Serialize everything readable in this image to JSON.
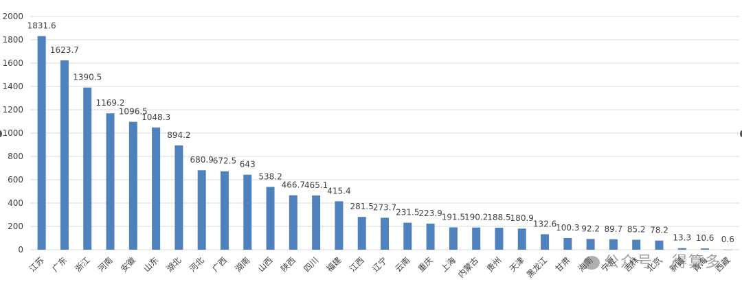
{
  "chart_data": {
    "type": "bar",
    "title": "",
    "xlabel": "",
    "ylabel": "",
    "ylim": [
      0,
      2000
    ],
    "yticks": [
      0,
      200,
      400,
      600,
      800,
      1000,
      1200,
      1400,
      1600,
      1800,
      2000
    ],
    "grid": true,
    "bar_color": "#4f81bd",
    "categories": [
      "江苏",
      "广东",
      "浙江",
      "河南",
      "安徽",
      "山东",
      "湖北",
      "河北",
      "广西",
      "湖南",
      "山西",
      "陕西",
      "四川",
      "福建",
      "江西",
      "辽宁",
      "云南",
      "重庆",
      "上海",
      "内蒙古",
      "贵州",
      "天津",
      "黑龙江",
      "甘肃",
      "海南",
      "宁夏",
      "吉林",
      "北京",
      "新疆",
      "青海",
      "西藏"
    ],
    "values": [
      1831.6,
      1623.7,
      1390.5,
      1169.2,
      1096.5,
      1048.3,
      894.2,
      680.9,
      672.5,
      643,
      538.2,
      466.7,
      465.1,
      415.4,
      281.5,
      273.7,
      231.5,
      223.9,
      191.5,
      190.2,
      188.5,
      180.9,
      132.6,
      100.3,
      92.2,
      89.7,
      85.2,
      78.2,
      13.3,
      10.6,
      0.6
    ],
    "labels": [
      "1831.6",
      "1623.7",
      "1390.5",
      "1169.2",
      "1096.5",
      "1048.3",
      "894.2",
      "680.9",
      "672.5",
      "643",
      "538.2",
      "466.7",
      "465.1",
      "415.4",
      "281.5",
      "273.7",
      "231.5",
      "223.9",
      "191.5",
      "190.2",
      "188.5",
      "180.9",
      "132.6",
      "100.3",
      "92.2",
      "89.7",
      "85.2",
      "78.2",
      "13.3",
      "10.6",
      "0.6"
    ]
  },
  "watermark": {
    "icon": "wechat-icon",
    "text": "公众号 · 得算多"
  }
}
